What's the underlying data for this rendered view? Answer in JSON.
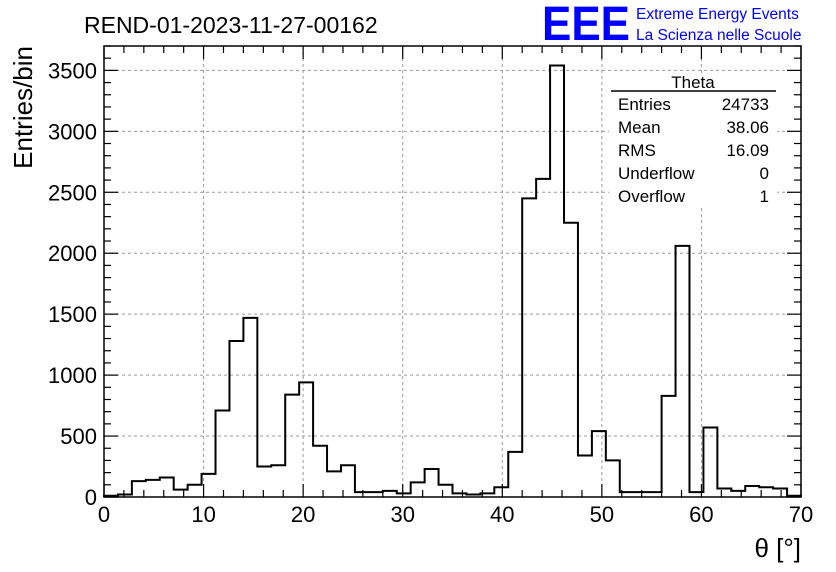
{
  "chart_data": {
    "type": "bar",
    "title": "REND-01-2023-11-27-00162",
    "xlabel": "θ [°]",
    "ylabel": "Entries/bin",
    "xlim": [
      0,
      70
    ],
    "ylim": [
      0,
      3700
    ],
    "bin_width": 1.4,
    "grid": true,
    "x_ticks": [
      0,
      10,
      20,
      30,
      40,
      50,
      60,
      70
    ],
    "y_ticks": [
      0,
      500,
      1000,
      1500,
      2000,
      2500,
      3000,
      3500
    ],
    "values": [
      10,
      20,
      130,
      140,
      160,
      60,
      100,
      190,
      710,
      1280,
      1470,
      250,
      260,
      840,
      940,
      420,
      210,
      260,
      40,
      40,
      50,
      30,
      120,
      230,
      100,
      30,
      20,
      30,
      80,
      370,
      2450,
      2610,
      3540,
      2250,
      340,
      540,
      300,
      40,
      40,
      40,
      830,
      2060,
      40,
      570,
      70,
      50,
      90,
      80,
      70,
      10
    ],
    "stats_box": {
      "title": "Theta",
      "rows": [
        {
          "label": "Entries",
          "value": "24733"
        },
        {
          "label": "Mean",
          "value": "38.06"
        },
        {
          "label": "RMS",
          "value": "16.09"
        },
        {
          "label": "Underflow",
          "value": "0"
        },
        {
          "label": "Overflow",
          "value": "1"
        }
      ]
    }
  },
  "logo": {
    "mark": "EEE",
    "line1": "Extreme Energy Events",
    "line2": "La Scienza nelle Scuole",
    "color": "#0000ff"
  }
}
